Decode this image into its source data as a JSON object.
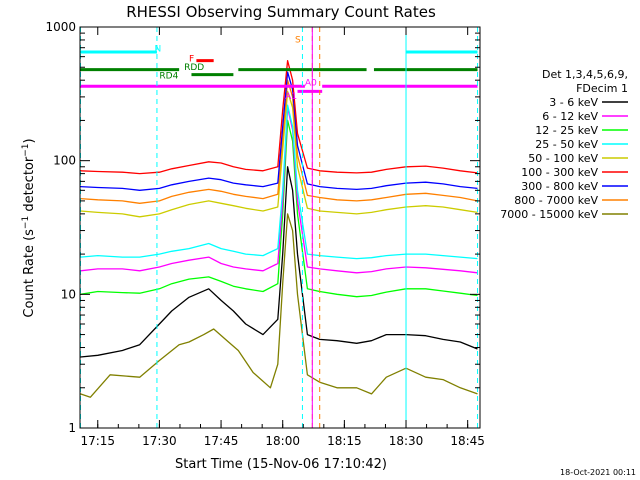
{
  "chart_data": {
    "type": "line",
    "title": "RHESSI Observing Summary Count Rates",
    "xlabel": "Start Time (15-Nov-06 17:10:42)",
    "ylabel": "Count Rate (s⁻¹ detector⁻¹)",
    "ylabel_parts": {
      "main": "Count Rate (s",
      "sup1": "−1",
      "mid": " detector",
      "sup2": "−1",
      "end": ")"
    },
    "yscale": "log",
    "xlim": [
      17.178,
      18.8
    ],
    "ylim": [
      1,
      1000
    ],
    "x_ticks": [
      {
        "value": 17.25,
        "label": "17:15"
      },
      {
        "value": 17.5,
        "label": "17:30"
      },
      {
        "value": 17.75,
        "label": "17:45"
      },
      {
        "value": 18.0,
        "label": "18:00"
      },
      {
        "value": 18.25,
        "label": "18:15"
      },
      {
        "value": 18.5,
        "label": "18:30"
      },
      {
        "value": 18.75,
        "label": "18:45"
      }
    ],
    "y_ticks": [
      {
        "value": 1,
        "label": "1"
      },
      {
        "value": 10,
        "label": "10"
      },
      {
        "value": 100,
        "label": "100"
      },
      {
        "value": 1000,
        "label": "1000"
      }
    ],
    "legend": {
      "placement": "right",
      "header": [
        "Det 1,3,4,5,6,9,",
        "FDecim 1"
      ],
      "entries": [
        {
          "label": "3 - 6 keV",
          "color": "#000000"
        },
        {
          "label": "6 - 12 keV",
          "color": "#ff00ff"
        },
        {
          "label": "12 - 25 keV",
          "color": "#00ff00"
        },
        {
          "label": "25 - 50 keV",
          "color": "#00ffff"
        },
        {
          "label": "50 - 100 keV",
          "color": "#cccc00"
        },
        {
          "label": "100 - 300 keV",
          "color": "#ff0000"
        },
        {
          "label": "300 - 800 keV",
          "color": "#0000ff"
        },
        {
          "label": "800 - 7000 keV",
          "color": "#ff8000"
        },
        {
          "label": "7000 - 15000 keV",
          "color": "#808000"
        }
      ]
    },
    "series": [
      {
        "color": "#808000",
        "x": [
          17.18,
          17.22,
          17.3,
          17.42,
          17.5,
          17.58,
          17.62,
          17.68,
          17.72,
          17.78,
          17.82,
          17.88,
          17.95,
          17.98,
          18.0,
          18.02,
          18.04,
          18.06,
          18.1,
          18.15,
          18.22,
          18.3,
          18.36,
          18.42,
          18.5,
          18.58,
          18.65,
          18.72,
          18.79
        ],
        "y": [
          1.8,
          1.7,
          2.5,
          2.4,
          3.2,
          4.2,
          4.4,
          5.0,
          5.5,
          4.4,
          3.8,
          2.6,
          2.0,
          3.0,
          12,
          40,
          30,
          10,
          2.5,
          2.2,
          2.0,
          2.0,
          1.8,
          2.4,
          2.8,
          2.4,
          2.3,
          2.0,
          1.8
        ]
      },
      {
        "color": "#000000",
        "x": [
          17.18,
          17.25,
          17.35,
          17.42,
          17.5,
          17.55,
          17.62,
          17.7,
          17.75,
          17.8,
          17.85,
          17.92,
          17.98,
          18.0,
          18.02,
          18.04,
          18.06,
          18.1,
          18.15,
          18.22,
          18.3,
          18.36,
          18.42,
          18.5,
          18.58,
          18.65,
          18.72,
          18.79
        ],
        "y": [
          3.4,
          3.5,
          3.8,
          4.2,
          6.0,
          7.5,
          9.5,
          11,
          9.0,
          7.5,
          6.0,
          5.0,
          6.5,
          20,
          90,
          60,
          20,
          5.0,
          4.6,
          4.5,
          4.3,
          4.5,
          5.0,
          5.0,
          4.9,
          4.6,
          4.4,
          3.9
        ]
      },
      {
        "color": "#00ff00",
        "x": [
          17.18,
          17.25,
          17.35,
          17.42,
          17.5,
          17.55,
          17.62,
          17.7,
          17.75,
          17.8,
          17.85,
          17.92,
          17.98,
          18.0,
          18.02,
          18.04,
          18.06,
          18.1,
          18.15,
          18.22,
          18.3,
          18.36,
          18.42,
          18.5,
          18.58,
          18.65,
          18.72,
          18.79
        ],
        "y": [
          10,
          10.5,
          10.3,
          10.2,
          11,
          12,
          13,
          13.5,
          12.5,
          11.5,
          11,
          10.5,
          12,
          40,
          200,
          140,
          40,
          11,
          10.5,
          10,
          9.6,
          9.8,
          10.4,
          11,
          11,
          10.6,
          10.2,
          9.8
        ]
      },
      {
        "color": "#ff00ff",
        "x": [
          17.18,
          17.25,
          17.35,
          17.42,
          17.5,
          17.55,
          17.62,
          17.7,
          17.75,
          17.8,
          17.85,
          17.92,
          17.98,
          18.0,
          18.02,
          18.04,
          18.06,
          18.1,
          18.15,
          18.22,
          18.3,
          18.36,
          18.42,
          18.5,
          18.58,
          18.65,
          18.72,
          18.79
        ],
        "y": [
          15,
          15.5,
          15.5,
          15,
          16,
          17,
          18,
          19,
          17,
          16,
          15.5,
          15,
          17,
          50,
          250,
          170,
          50,
          16,
          15.5,
          15,
          14.5,
          14.8,
          15.5,
          16,
          15.8,
          15.4,
          15,
          14.5
        ]
      },
      {
        "color": "#00ffff",
        "x": [
          17.18,
          17.25,
          17.35,
          17.42,
          17.5,
          17.55,
          17.62,
          17.7,
          17.75,
          17.8,
          17.85,
          17.92,
          17.98,
          18.0,
          18.02,
          18.04,
          18.06,
          18.1,
          18.15,
          18.22,
          18.3,
          18.36,
          18.42,
          18.5,
          18.58,
          18.65,
          18.72,
          18.79
        ],
        "y": [
          19,
          19.5,
          19,
          19,
          20,
          21,
          22,
          24,
          22,
          21,
          20,
          19.5,
          22,
          60,
          260,
          180,
          60,
          20,
          19.5,
          19,
          18.5,
          18.8,
          19.5,
          20,
          20,
          19.5,
          19,
          18.5
        ]
      },
      {
        "color": "#cccc00",
        "x": [
          17.18,
          17.25,
          17.35,
          17.42,
          17.5,
          17.55,
          17.62,
          17.7,
          17.75,
          17.8,
          17.85,
          17.92,
          17.98,
          18.0,
          18.02,
          18.04,
          18.06,
          18.1,
          18.15,
          18.22,
          18.3,
          18.36,
          18.42,
          18.5,
          18.58,
          18.65,
          18.72,
          18.79
        ],
        "y": [
          42,
          41,
          40,
          38,
          40,
          43,
          47,
          50,
          48,
          46,
          44,
          42,
          45,
          120,
          330,
          250,
          90,
          44,
          42,
          41,
          40,
          41,
          43,
          45,
          46,
          45,
          43,
          41
        ]
      },
      {
        "color": "#ff8000",
        "x": [
          17.18,
          17.25,
          17.35,
          17.42,
          17.5,
          17.55,
          17.62,
          17.7,
          17.75,
          17.8,
          17.85,
          17.92,
          17.98,
          18.0,
          18.02,
          18.04,
          18.06,
          18.1,
          18.15,
          18.22,
          18.3,
          18.36,
          18.42,
          18.5,
          18.58,
          18.65,
          18.72,
          18.79
        ],
        "y": [
          52,
          51,
          50,
          48,
          50,
          54,
          58,
          61,
          59,
          56,
          54,
          52,
          56,
          150,
          400,
          300,
          110,
          55,
          53,
          51,
          50,
          51,
          53,
          56,
          57,
          55,
          53,
          50
        ]
      },
      {
        "color": "#0000ff",
        "x": [
          17.18,
          17.25,
          17.35,
          17.42,
          17.5,
          17.55,
          17.62,
          17.7,
          17.75,
          17.8,
          17.85,
          17.92,
          17.98,
          18.0,
          18.02,
          18.04,
          18.06,
          18.1,
          18.15,
          18.22,
          18.3,
          18.36,
          18.42,
          18.5,
          18.58,
          18.65,
          18.72,
          18.79
        ],
        "y": [
          64,
          63,
          62,
          60,
          62,
          66,
          70,
          74,
          72,
          68,
          66,
          64,
          68,
          180,
          460,
          340,
          130,
          67,
          64,
          62,
          61,
          62,
          65,
          68,
          69,
          67,
          64,
          62
        ]
      },
      {
        "color": "#ff0000",
        "x": [
          17.18,
          17.25,
          17.35,
          17.42,
          17.5,
          17.55,
          17.62,
          17.7,
          17.75,
          17.8,
          17.85,
          17.92,
          17.98,
          18.0,
          18.02,
          18.04,
          18.06,
          18.1,
          18.15,
          18.22,
          18.3,
          18.36,
          18.42,
          18.5,
          18.58,
          18.65,
          18.72,
          18.79
        ],
        "y": [
          84,
          83,
          82,
          80,
          82,
          87,
          92,
          98,
          96,
          90,
          86,
          84,
          90,
          240,
          560,
          400,
          160,
          88,
          84,
          82,
          81,
          82,
          86,
          90,
          91,
          88,
          84,
          81
        ]
      }
    ],
    "state_bars": [
      {
        "label": "N",
        "color": "#00ffff",
        "y": 650,
        "segments": [
          [
            17.18,
            17.49
          ],
          [
            18.5,
            18.79
          ]
        ],
        "label_x": 17.48,
        "label_y": 700
      },
      {
        "label": "RD4",
        "color": "#008000",
        "y": 440,
        "segments": [
          [
            17.63,
            17.8
          ]
        ],
        "label_x": 17.5,
        "label_y": 440
      },
      {
        "label": "RDD",
        "color": "#008000",
        "y": 480,
        "segments": [
          [
            17.18,
            17.58
          ],
          [
            17.82,
            18.34
          ],
          [
            18.37,
            18.79
          ]
        ],
        "label_x": 17.6,
        "label_y": 510
      },
      {
        "label": "F",
        "color": "#ff0000",
        "y": 560,
        "segments": [
          [
            17.65,
            17.72
          ]
        ],
        "label_x": 17.62,
        "label_y": 590
      },
      {
        "label": "S",
        "color": "#ff8000",
        "y": 800,
        "segments": [],
        "label_x": 18.05,
        "label_y": 820
      },
      {
        "label": "A0",
        "color": "#ff00ff",
        "y": 360,
        "segments": [
          [
            17.18,
            18.09
          ],
          [
            18.16,
            18.79
          ]
        ],
        "label_x": 18.09,
        "label_y": 390
      },
      {
        "label": "A1",
        "color": "#ff00ff",
        "y": 330,
        "segments": [
          [
            18.06,
            18.16
          ]
        ],
        "label_x": 18.01,
        "label_y": 310
      }
    ],
    "vlines": [
      {
        "x": 17.18,
        "color": "#00ffff",
        "style": "dash"
      },
      {
        "x": 17.49,
        "color": "#00ffff",
        "style": "dash"
      },
      {
        "x": 18.08,
        "color": "#00ffff",
        "style": "dash"
      },
      {
        "x": 18.5,
        "color": "#00ffff",
        "style": "solid"
      },
      {
        "x": 18.79,
        "color": "#00ffff",
        "style": "dash"
      },
      {
        "x": 18.12,
        "color": "#ff8000",
        "style": "dash"
      },
      {
        "x": 18.15,
        "color": "#ff8000",
        "style": "dash"
      },
      {
        "x": 18.12,
        "color": "#ff00ff",
        "style": "solid"
      }
    ],
    "grid": false
  },
  "footer": {
    "timestamp": "18-Oct-2021 00:11"
  }
}
